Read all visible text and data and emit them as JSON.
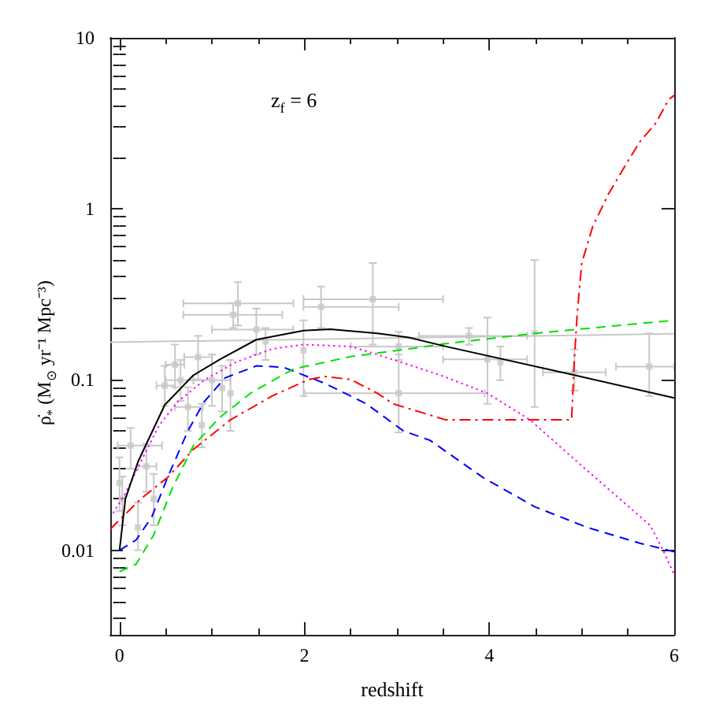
{
  "chart_data": {
    "type": "line",
    "xlabel": "redshift",
    "ylabel": "ρ̇$_{*}$ (M$_{⊙}$ yr⁻¹ Mpc⁻³)",
    "annotations": [
      "z$_{f}$ = 6"
    ],
    "xlim": [
      -0.1,
      6
    ],
    "ylim": [
      0.0032,
      10
    ],
    "xticks": [
      0,
      {
        "value": 0.5,
        "label": null
      },
      {
        "value": 1,
        "label": null
      },
      {
        "value": 1.5,
        "label": null
      },
      2,
      {
        "value": 2.5,
        "label": null
      },
      {
        "value": 3,
        "label": null
      },
      {
        "value": 3.5,
        "label": null
      },
      4,
      {
        "value": 4.5,
        "label": null
      },
      {
        "value": 5,
        "label": null
      },
      {
        "value": 5.5,
        "label": null
      },
      6
    ],
    "yticks": [
      {
        "value": 0.004,
        "label": null
      },
      {
        "value": 0.005,
        "label": null
      },
      {
        "value": 0.006,
        "label": null
      },
      {
        "value": 0.007,
        "label": null
      },
      {
        "value": 0.008,
        "label": null
      },
      {
        "value": 0.009,
        "label": null
      },
      0.01,
      {
        "value": 0.02,
        "label": null
      },
      {
        "value": 0.03,
        "label": null
      },
      {
        "value": 0.04,
        "label": null
      },
      {
        "value": 0.05,
        "label": null
      },
      {
        "value": 0.06,
        "label": null
      },
      {
        "value": 0.07,
        "label": null
      },
      {
        "value": 0.08,
        "label": null
      },
      {
        "value": 0.09,
        "label": null
      },
      0.1,
      {
        "value": 0.2,
        "label": null
      },
      {
        "value": 0.3,
        "label": null
      },
      {
        "value": 0.4,
        "label": null
      },
      {
        "value": 0.5,
        "label": null
      },
      {
        "value": 0.6,
        "label": null
      },
      {
        "value": 0.7,
        "label": null
      },
      {
        "value": 0.8,
        "label": null
      },
      {
        "value": 0.9,
        "label": null
      },
      1,
      {
        "value": 2,
        "label": null
      },
      {
        "value": 3,
        "label": null
      },
      {
        "value": 4,
        "label": null
      },
      {
        "value": 5,
        "label": null
      },
      {
        "value": 6,
        "label": null
      },
      {
        "value": 7,
        "label": null
      },
      {
        "value": 8,
        "label": null
      },
      {
        "value": 9,
        "label": null
      },
      10
    ],
    "log": "y",
    "grid": false,
    "marker": "none",
    "series": [
      {
        "type": "scatter",
        "color": "#c8c8c8",
        "marker": "square",
        "x": [
          0.0,
          0.03,
          0.12,
          0.2,
          0.29,
          0.37,
          0.49,
          0.6,
          0.66,
          0.74,
          0.85,
          0.89,
          1.0,
          1.11,
          1.2,
          1.23,
          1.28,
          1.48,
          1.58,
          1.99,
          2.18,
          2.74,
          3.02,
          3.02,
          3.78,
          3.98,
          4.12,
          4.49,
          4.92,
          5.73
        ],
        "values": [
          0.0248,
          0.02,
          0.041,
          0.0136,
          0.031,
          0.02,
          0.092,
          0.122,
          0.099,
          0.069,
          0.135,
          0.054,
          0.099,
          0.089,
          0.083,
          0.239,
          0.279,
          0.196,
          0.167,
          0.148,
          0.266,
          0.295,
          0.156,
          0.083,
          0.18,
          0.131,
          0.126,
          0.186,
          0.11,
          0.119
        ],
        "errors": [
          [
            0.017,
            0.035
          ],
          [
            0.014,
            0.027
          ],
          [
            0.03,
            0.052
          ],
          [
            0.01,
            0.019
          ],
          [
            0.022,
            0.042
          ],
          [
            0.014,
            0.028
          ],
          [
            0.07,
            0.12
          ],
          [
            0.09,
            0.16
          ],
          [
            0.075,
            0.13
          ],
          [
            0.05,
            0.09
          ],
          [
            0.1,
            0.18
          ],
          [
            0.04,
            0.072
          ],
          [
            0.07,
            0.14
          ],
          [
            0.065,
            0.12
          ],
          [
            0.05,
            0.13
          ],
          [
            0.2,
            0.28
          ],
          [
            0.207,
            0.371
          ],
          [
            0.14,
            0.26
          ],
          [
            0.13,
            0.2
          ],
          [
            0.08,
            0.222
          ],
          [
            0.2,
            0.35
          ],
          [
            0.16,
            0.48
          ],
          [
            0.13,
            0.19
          ],
          [
            0.049,
            0.14
          ],
          [
            0.16,
            0.2
          ],
          [
            0.072,
            0.23
          ],
          [
            0.099,
            0.156
          ],
          [
            0.069,
            0.5
          ],
          [
            0.086,
            0.15
          ],
          [
            0.08,
            0.186
          ]
        ],
        "xerrors": [
          null,
          null,
          [
            -0.02,
            0.46
          ],
          null,
          [
            0.2,
            0.4
          ],
          null,
          [
            0.4,
            0.6
          ],
          [
            0.5,
            0.7
          ],
          [
            0.5,
            0.8
          ],
          [
            0.6,
            0.9
          ],
          [
            0.7,
            1.0
          ],
          null,
          [
            0.8,
            1.2
          ],
          null,
          null,
          [
            0.69,
            1.76
          ],
          [
            0.69,
            1.88
          ],
          [
            1.0,
            1.88
          ],
          null,
          null,
          [
            1.99,
            3.02
          ],
          [
            1.99,
            3.5
          ],
          [
            2.5,
            3.5
          ],
          [
            2.0,
            3.95
          ],
          [
            3.24,
            4.41
          ],
          [
            3.5,
            4.41
          ],
          null,
          null,
          [
            4.58,
            5.26
          ],
          [
            5.37,
            6.0
          ]
        ]
      },
      {
        "color": "#c8c8c8",
        "x": [
          -0.1,
          6
        ],
        "values": [
          0.165,
          0.185
        ],
        "line_style": "solid"
      },
      {
        "color": "#ff0000",
        "line_style": "dashdot",
        "x": [
          -0.1,
          0.23,
          0.52,
          0.8,
          1.2,
          1.65,
          2.05,
          2.22,
          2.5,
          2.79,
          2.96,
          3.53,
          4.89,
          4.92,
          4.95,
          5.0,
          5.12,
          5.29,
          5.49,
          5.63,
          5.8,
          5.94,
          6.0
        ],
        "values": [
          0.0133,
          0.02,
          0.0267,
          0.039,
          0.058,
          0.08,
          0.1,
          0.104,
          0.1,
          0.083,
          0.072,
          0.058,
          0.058,
          0.13,
          0.239,
          0.48,
          0.79,
          1.22,
          1.86,
          2.47,
          3.16,
          4.35,
          4.6
        ]
      },
      {
        "color": "#ff00ff",
        "line_style": "dotted",
        "x": [
          -0.07,
          0.063,
          0.23,
          0.43,
          0.63,
          0.915,
          1.255,
          1.65,
          1.99,
          2.5,
          2.79,
          3.47,
          3.98,
          4.44,
          4.95,
          5.34,
          5.74,
          5.88,
          6
        ],
        "values": [
          0.0165,
          0.0215,
          0.033,
          0.054,
          0.074,
          0.099,
          0.126,
          0.151,
          0.16,
          0.156,
          0.14,
          0.106,
          0.083,
          0.058,
          0.033,
          0.0216,
          0.014,
          0.01,
          0.0072
        ]
      },
      {
        "color": "#0000ff",
        "line_style": "dashed",
        "x": [
          0,
          0.18,
          0.35,
          0.52,
          0.74,
          0.915,
          1.14,
          1.48,
          1.77,
          2.22,
          2.67,
          3.07,
          3.36,
          3.93,
          4.49,
          5.06,
          5.63,
          6
        ],
        "values": [
          0.01,
          0.0115,
          0.0157,
          0.0267,
          0.05,
          0.074,
          0.102,
          0.12,
          0.118,
          0.095,
          0.072,
          0.05,
          0.044,
          0.0267,
          0.018,
          0.0136,
          0.011,
          0.0098
        ]
      },
      {
        "color": "#00e000",
        "line_style": "dashed",
        "x": [
          0,
          0.18,
          0.37,
          0.57,
          0.8,
          1.085,
          1.43,
          1.88,
          2.5,
          3.13,
          3.53,
          4.49,
          6
        ],
        "values": [
          0.0075,
          0.0083,
          0.0123,
          0.023,
          0.041,
          0.06,
          0.084,
          0.115,
          0.136,
          0.151,
          0.162,
          0.186,
          0.222
        ]
      },
      {
        "color": "#000000",
        "line_style": "solid",
        "x": [
          0,
          0.064,
          0.2,
          0.49,
          0.8,
          1.085,
          1.48,
          1.99,
          2.28,
          2.79,
          3.13,
          3.53,
          4.92,
          6
        ],
        "values": [
          0.01,
          0.02,
          0.033,
          0.071,
          0.106,
          0.131,
          0.171,
          0.193,
          0.197,
          0.186,
          0.176,
          0.156,
          0.106,
          0.078
        ]
      }
    ]
  }
}
